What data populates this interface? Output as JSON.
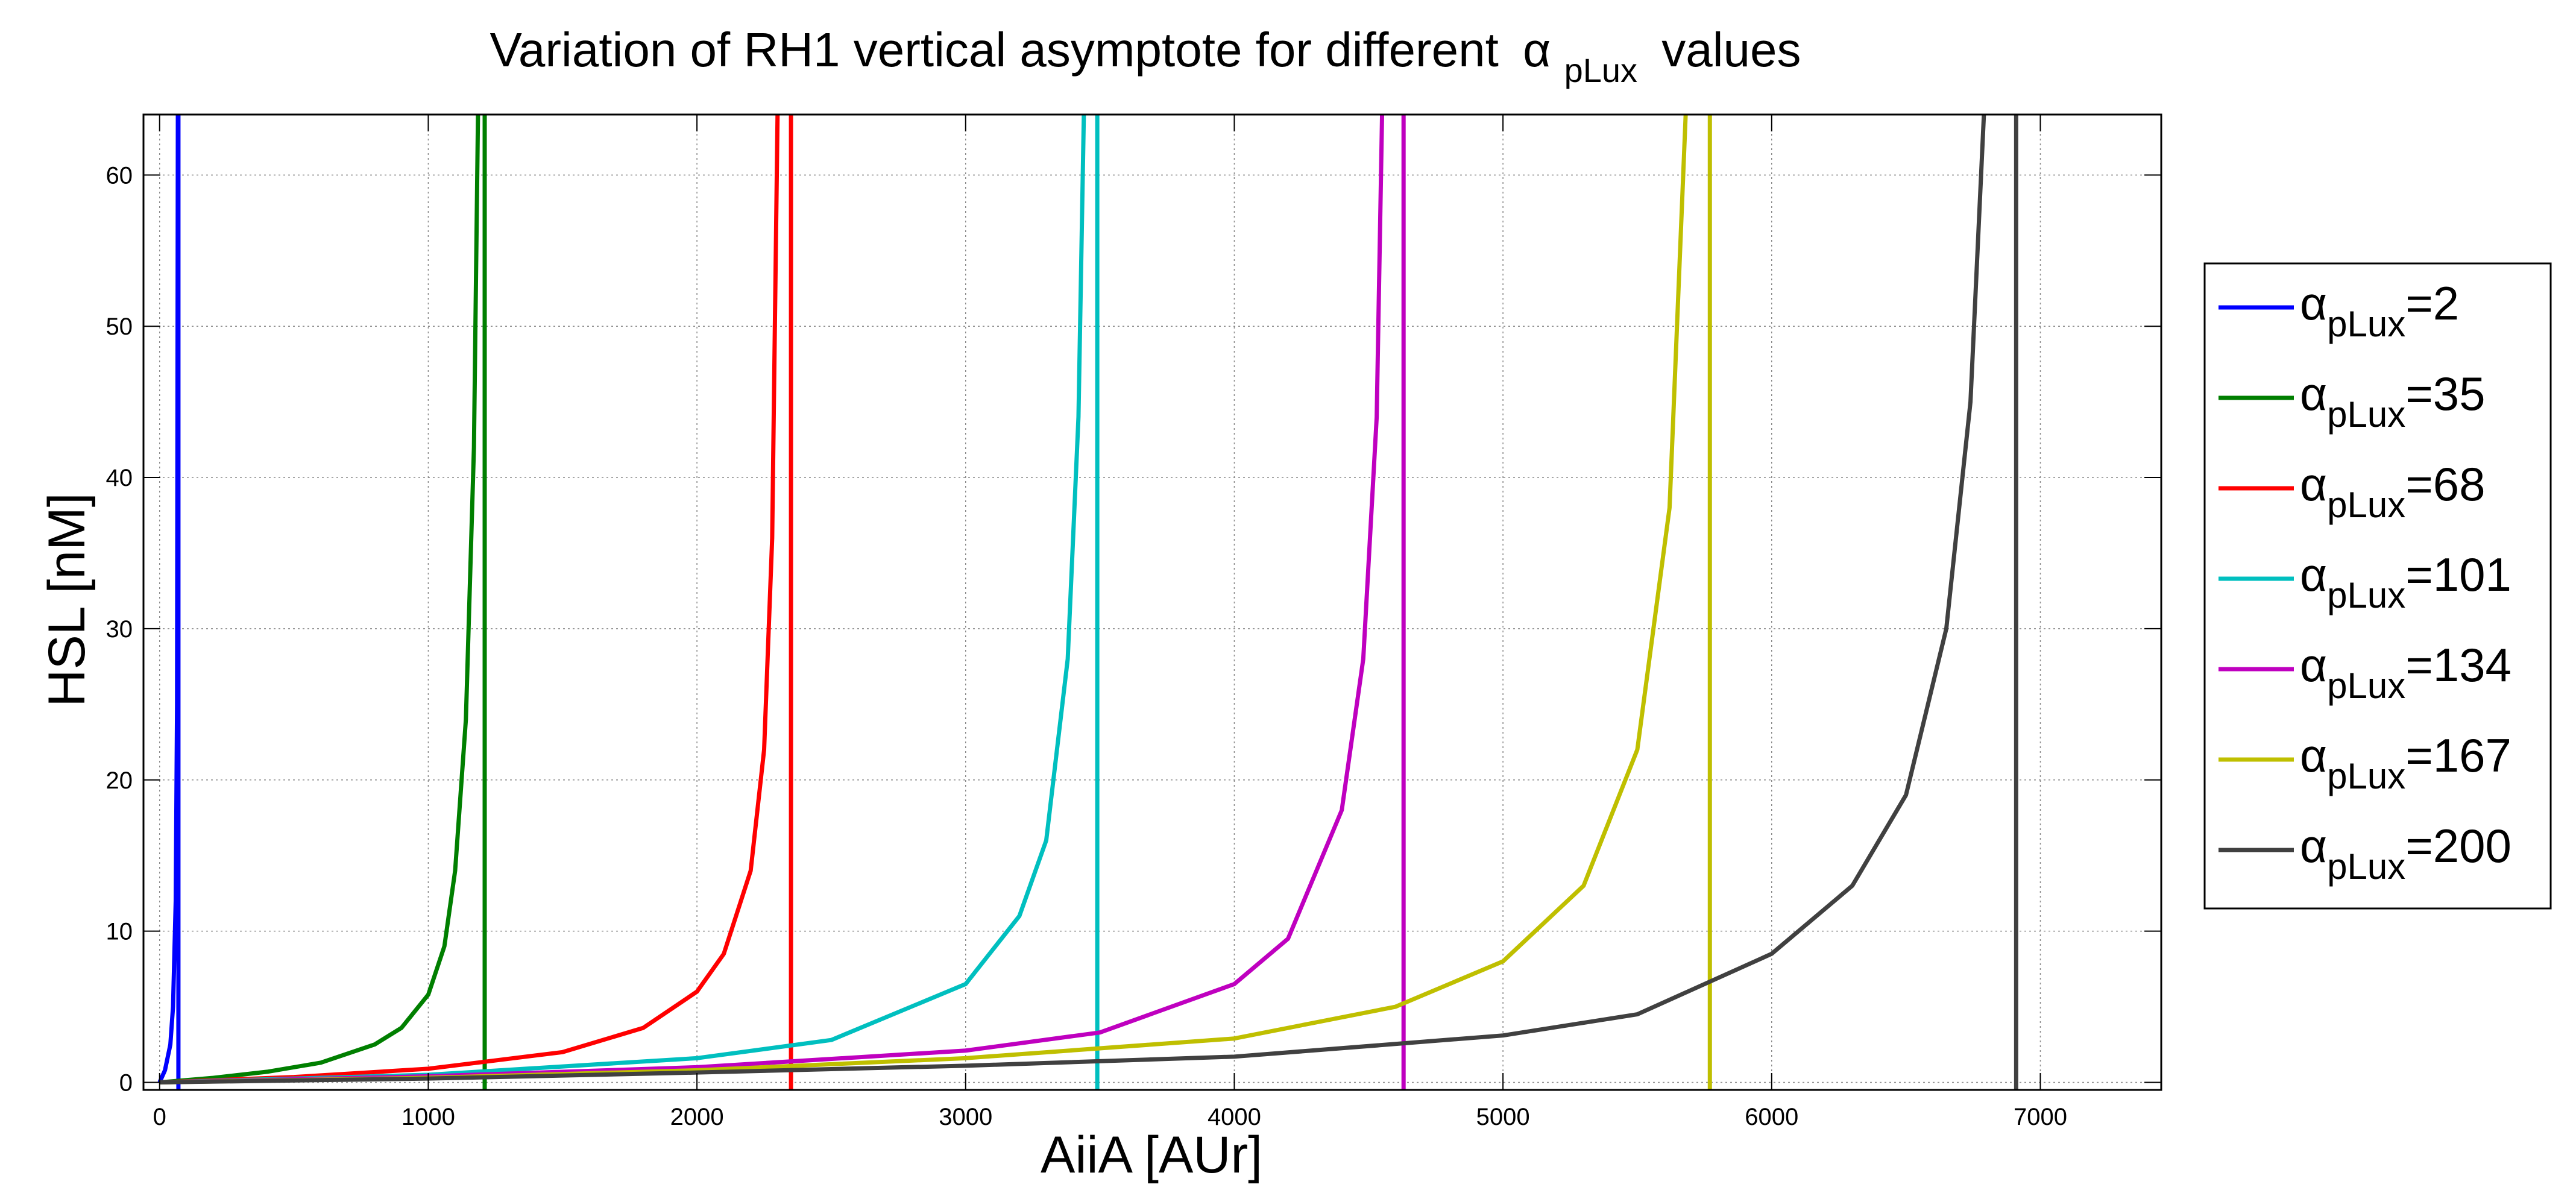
{
  "chart_data": {
    "type": "line",
    "title": "Variation of RH1 vertical asymptote for different",
    "title_symbol": "α",
    "title_subscript": "pLux",
    "title_suffix": "values",
    "xlabel": "AiiA [AUr]",
    "ylabel": "HSL [nM]",
    "xlim": [
      -60,
      7450
    ],
    "ylim": [
      -0.5,
      64
    ],
    "xticks": [
      0,
      1000,
      2000,
      3000,
      4000,
      5000,
      6000,
      7000
    ],
    "yticks": [
      0,
      10,
      20,
      30,
      40,
      50,
      60
    ],
    "grid": true,
    "legend_position": "outside-right",
    "series": [
      {
        "name": "αpLux=2",
        "symbol": "α",
        "subscript": "pLux",
        "value_text": "=2",
        "color": "#0000ff",
        "asymptote_x": 70,
        "x": [
          0,
          20,
          40,
          50,
          60,
          65,
          68
        ],
        "y": [
          0,
          0.8,
          2.5,
          5,
          12,
          25,
          64
        ]
      },
      {
        "name": "αpLux=35",
        "symbol": "α",
        "subscript": "pLux",
        "value_text": "=35",
        "color": "#007f00",
        "asymptote_x": 1210,
        "x": [
          0,
          200,
          400,
          600,
          800,
          900,
          1000,
          1060,
          1100,
          1140,
          1170,
          1185
        ],
        "y": [
          0,
          0.3,
          0.7,
          1.3,
          2.5,
          3.6,
          5.8,
          9,
          14,
          24,
          42,
          64
        ]
      },
      {
        "name": "αpLux=68",
        "symbol": "α",
        "subscript": "pLux",
        "value_text": "=68",
        "color": "#ff0000",
        "asymptote_x": 2350,
        "x": [
          0,
          500,
          1000,
          1500,
          1800,
          2000,
          2100,
          2200,
          2250,
          2280,
          2300
        ],
        "y": [
          0,
          0.35,
          0.9,
          2.0,
          3.6,
          6.0,
          8.5,
          14,
          22,
          36,
          64
        ]
      },
      {
        "name": "αpLux=101",
        "symbol": "α",
        "subscript": "pLux",
        "value_text": "=101",
        "color": "#00bfbf",
        "asymptote_x": 3490,
        "x": [
          0,
          1000,
          2000,
          2500,
          3000,
          3200,
          3300,
          3380,
          3420,
          3440
        ],
        "y": [
          0,
          0.5,
          1.6,
          2.8,
          6.5,
          11,
          16,
          28,
          44,
          64
        ]
      },
      {
        "name": "αpLux=134",
        "symbol": "α",
        "subscript": "pLux",
        "value_text": "=134",
        "color": "#bf00bf",
        "asymptote_x": 4630,
        "x": [
          0,
          1000,
          2000,
          3000,
          3500,
          4000,
          4200,
          4400,
          4480,
          4530,
          4550
        ],
        "y": [
          0,
          0.4,
          1.0,
          2.1,
          3.3,
          6.5,
          9.5,
          18,
          28,
          44,
          64
        ]
      },
      {
        "name": "αpLux=167",
        "symbol": "α",
        "subscript": "pLux",
        "value_text": "=167",
        "color": "#bfbf00",
        "asymptote_x": 5770,
        "x": [
          0,
          1000,
          2000,
          3000,
          4000,
          4600,
          5000,
          5300,
          5500,
          5620,
          5680
        ],
        "y": [
          0,
          0.3,
          0.8,
          1.6,
          2.9,
          5.0,
          8.0,
          13,
          22,
          38,
          64
        ]
      },
      {
        "name": "αpLux=200",
        "symbol": "α",
        "subscript": "pLux",
        "value_text": "=200",
        "color": "#404040",
        "asymptote_x": 6910,
        "x": [
          0,
          1000,
          2000,
          3000,
          4000,
          5000,
          5500,
          6000,
          6300,
          6500,
          6650,
          6740,
          6790
        ],
        "y": [
          0,
          0.25,
          0.65,
          1.1,
          1.7,
          3.1,
          4.5,
          8.5,
          13,
          19,
          30,
          45,
          64
        ]
      }
    ]
  }
}
